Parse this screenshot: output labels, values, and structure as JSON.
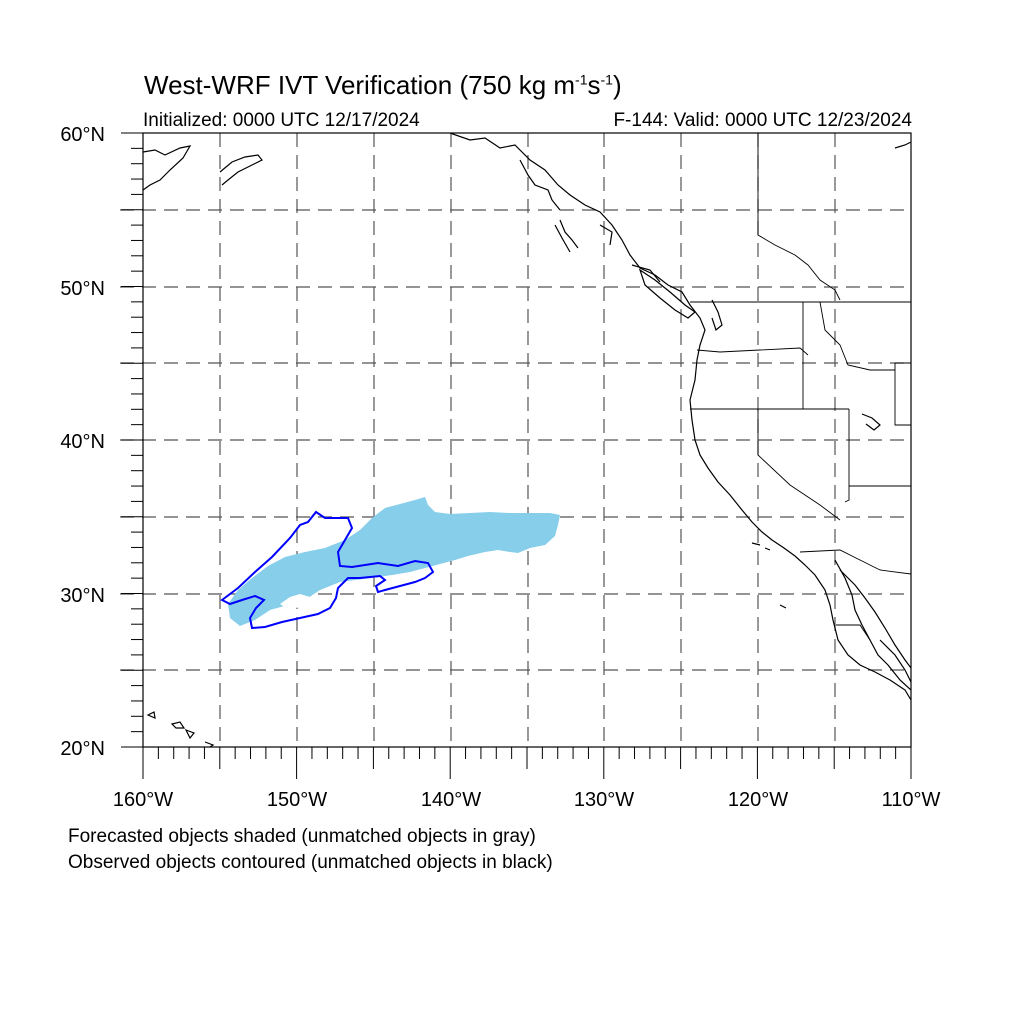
{
  "title": {
    "main": "West-WRF IVT Verification (750 kg m",
    "exp1": "-1",
    "mid": "s",
    "exp2": "-1",
    "end": ")"
  },
  "subtitle_left": "Initialized: 0000 UTC 12/17/2024",
  "subtitle_right": "F-144: Valid: 0000 UTC 12/23/2024",
  "map": {
    "lat_labels": [
      "60°N",
      "50°N",
      "40°N",
      "30°N",
      "20°N"
    ],
    "lon_labels": [
      "160°W",
      "150°W",
      "140°W",
      "130°W",
      "120°W",
      "110°W"
    ],
    "lat_range": [
      20,
      60
    ],
    "lon_range": [
      -160,
      -110
    ],
    "grid": "dashed every 5 degrees",
    "colors": {
      "forecast_fill": "#87ceeb",
      "observed_contour": "#0000ff",
      "coastline": "#000000",
      "grid": "#555555"
    }
  },
  "notes": [
    "Forecasted objects shaded (unmatched objects in gray)",
    "Observed objects contoured (unmatched objects in black)"
  ]
}
